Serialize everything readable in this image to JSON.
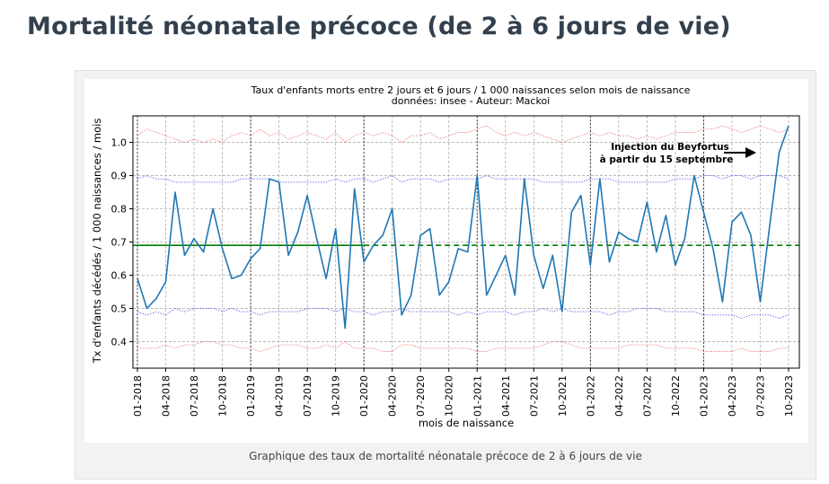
{
  "page": {
    "title": "Mortalité néonatale précoce (de 2 à 6 jours de vie)",
    "caption": "Graphique des taux de mortalité néonatale précoce de 2 à 6 jours de vie"
  },
  "chart_data": {
    "type": "line",
    "title": "Taux d'enfants morts entre 2 jours et 6 jours / 1 000 naissances selon mois de naissance",
    "subtitle": "données: insee - Auteur: Mackoi",
    "xlabel": "mois de naissance",
    "ylabel": "Tx d'enfants décédés / 1 000 naissances / mois",
    "x_start": "01-2018",
    "x_end": "11-2023",
    "x_tick_labels": [
      "01-2018",
      "04-2018",
      "07-2018",
      "10-2018",
      "01-2019",
      "04-2019",
      "07-2019",
      "10-2019",
      "01-2020",
      "04-2020",
      "07-2020",
      "10-2020",
      "01-2021",
      "04-2021",
      "07-2021",
      "10-2021",
      "01-2022",
      "04-2022",
      "07-2022",
      "10-2022",
      "01-2023",
      "04-2023",
      "07-2023",
      "10-2023"
    ],
    "year_separators": [
      "01-2018",
      "01-2019",
      "01-2020",
      "01-2021",
      "01-2022",
      "01-2023"
    ],
    "ylim": [
      0.32,
      1.08
    ],
    "y_ticks": [
      0.4,
      0.5,
      0.6,
      0.7,
      0.8,
      0.9,
      1.0
    ],
    "y_tick_labels": [
      "0.4",
      "0.5",
      "0.6",
      "0.7",
      "0.8",
      "0.9",
      "1.0"
    ],
    "grid": true,
    "reference_line": {
      "value": 0.69,
      "solid_until": "01-2020",
      "color": "#008000"
    },
    "series": [
      {
        "style": "solid",
        "color": "#1f77b4",
        "values": [
          0.59,
          0.5,
          0.53,
          0.58,
          0.85,
          0.66,
          0.71,
          0.67,
          0.8,
          0.68,
          0.59,
          0.6,
          0.65,
          0.68,
          0.89,
          0.88,
          0.66,
          0.73,
          0.84,
          0.71,
          0.59,
          0.74,
          0.44,
          0.86,
          0.64,
          0.69,
          0.72,
          0.8,
          0.48,
          0.54,
          0.72,
          0.74,
          0.54,
          0.58,
          0.68,
          0.67,
          0.9,
          0.54,
          0.6,
          0.66,
          0.54,
          0.89,
          0.66,
          0.56,
          0.66,
          0.49,
          0.79,
          0.84,
          0.63,
          0.89,
          0.64,
          0.73,
          0.71,
          0.7,
          0.82,
          0.67,
          0.78,
          0.63,
          0.71,
          0.9,
          0.79,
          0.68,
          0.52,
          0.76,
          0.79,
          0.72,
          0.52,
          0.75,
          0.97,
          1.05
        ]
      },
      {
        "style": "dotted",
        "color": "#f08080",
        "values": [
          1.02,
          1.04,
          1.03,
          1.02,
          1.01,
          1.0,
          1.01,
          1.0,
          1.01,
          1.0,
          1.02,
          1.03,
          1.02,
          1.04,
          1.02,
          1.03,
          1.01,
          1.02,
          1.03,
          1.02,
          1.01,
          1.03,
          1.0,
          1.02,
          1.03,
          1.02,
          1.03,
          1.02,
          1.0,
          1.02,
          1.02,
          1.03,
          1.01,
          1.02,
          1.03,
          1.03,
          1.04,
          1.05,
          1.03,
          1.02,
          1.03,
          1.02,
          1.03,
          1.02,
          1.01,
          1.0,
          1.01,
          1.02,
          1.03,
          1.02,
          1.03,
          1.02,
          1.02,
          1.01,
          1.02,
          1.01,
          1.02,
          1.03,
          1.03,
          1.03,
          1.04,
          1.04,
          1.05,
          1.04,
          1.03,
          1.04,
          1.05,
          1.04,
          1.03,
          1.04
        ]
      },
      {
        "style": "dotted",
        "color": "#6666ee",
        "values": [
          0.89,
          0.9,
          0.89,
          0.89,
          0.88,
          0.88,
          0.88,
          0.88,
          0.88,
          0.88,
          0.88,
          0.89,
          0.89,
          0.89,
          0.89,
          0.88,
          0.88,
          0.88,
          0.88,
          0.88,
          0.88,
          0.89,
          0.88,
          0.89,
          0.89,
          0.88,
          0.89,
          0.9,
          0.88,
          0.89,
          0.89,
          0.89,
          0.88,
          0.89,
          0.89,
          0.89,
          0.89,
          0.9,
          0.89,
          0.89,
          0.89,
          0.89,
          0.89,
          0.88,
          0.88,
          0.88,
          0.88,
          0.88,
          0.89,
          0.89,
          0.89,
          0.88,
          0.88,
          0.88,
          0.88,
          0.88,
          0.88,
          0.89,
          0.89,
          0.89,
          0.9,
          0.9,
          0.89,
          0.9,
          0.9,
          0.89,
          0.9,
          0.9,
          0.9,
          0.89
        ]
      },
      {
        "style": "dotted",
        "color": "#6666ee",
        "values": [
          0.49,
          0.48,
          0.49,
          0.48,
          0.5,
          0.49,
          0.5,
          0.5,
          0.5,
          0.49,
          0.5,
          0.49,
          0.49,
          0.48,
          0.49,
          0.49,
          0.49,
          0.49,
          0.5,
          0.5,
          0.5,
          0.49,
          0.5,
          0.49,
          0.49,
          0.48,
          0.49,
          0.49,
          0.5,
          0.49,
          0.49,
          0.49,
          0.49,
          0.49,
          0.48,
          0.49,
          0.48,
          0.49,
          0.49,
          0.49,
          0.48,
          0.49,
          0.49,
          0.5,
          0.49,
          0.5,
          0.49,
          0.49,
          0.49,
          0.49,
          0.48,
          0.49,
          0.49,
          0.5,
          0.5,
          0.5,
          0.49,
          0.49,
          0.49,
          0.49,
          0.48,
          0.48,
          0.48,
          0.48,
          0.47,
          0.48,
          0.48,
          0.48,
          0.47,
          0.48
        ]
      },
      {
        "style": "dotted",
        "color": "#f08080",
        "values": [
          0.38,
          0.38,
          0.38,
          0.39,
          0.38,
          0.39,
          0.39,
          0.4,
          0.4,
          0.39,
          0.39,
          0.38,
          0.38,
          0.37,
          0.38,
          0.39,
          0.39,
          0.39,
          0.38,
          0.38,
          0.39,
          0.38,
          0.4,
          0.38,
          0.38,
          0.38,
          0.37,
          0.37,
          0.39,
          0.39,
          0.38,
          0.38,
          0.38,
          0.38,
          0.38,
          0.38,
          0.37,
          0.37,
          0.38,
          0.38,
          0.38,
          0.38,
          0.38,
          0.39,
          0.4,
          0.4,
          0.39,
          0.38,
          0.38,
          0.38,
          0.38,
          0.38,
          0.39,
          0.39,
          0.39,
          0.39,
          0.38,
          0.38,
          0.38,
          0.38,
          0.37,
          0.37,
          0.37,
          0.37,
          0.38,
          0.37,
          0.37,
          0.37,
          0.38,
          0.38
        ]
      }
    ],
    "annotation": {
      "lines": [
        "Injection du Beyfortus",
        "à partir du 15 septembre"
      ],
      "arrow_to": "09-2023"
    }
  }
}
